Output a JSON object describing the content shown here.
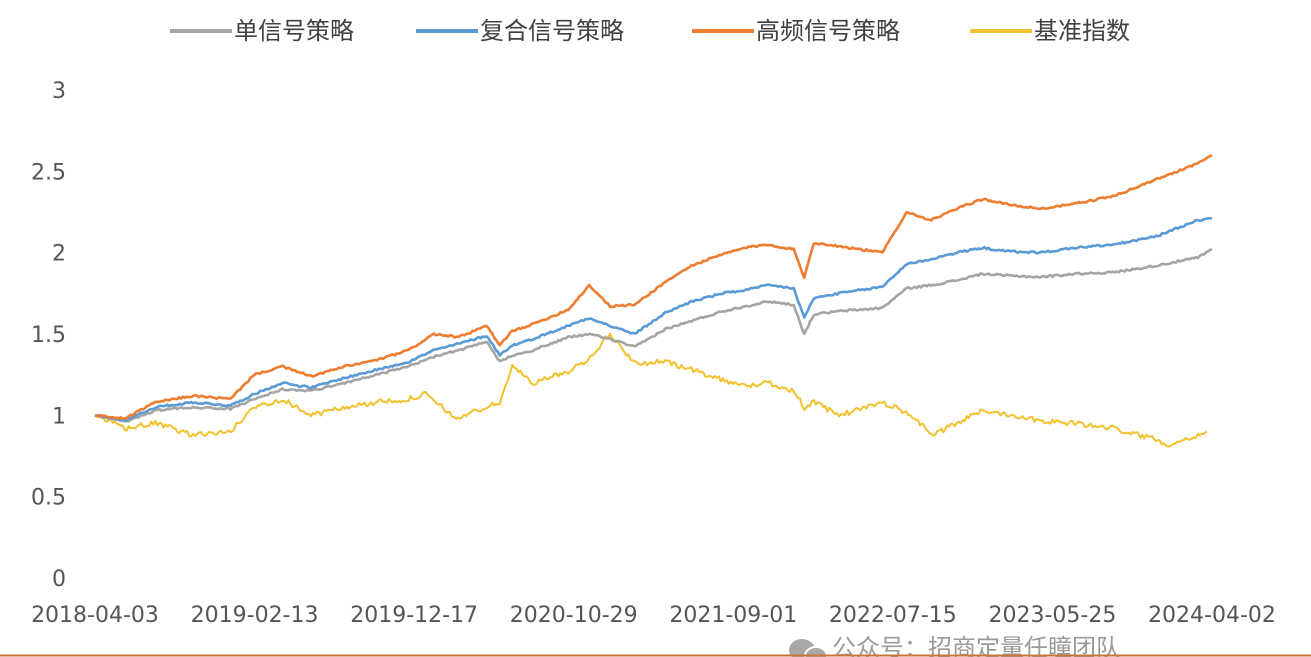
{
  "chart_data": {
    "type": "line",
    "title": "",
    "xlabel": "",
    "ylabel": "",
    "ylim": [
      0,
      3
    ],
    "yticks": [
      0,
      0.5,
      1,
      1.5,
      2,
      2.5,
      3
    ],
    "ytick_labels": [
      "0",
      "0.5",
      "1",
      "1.5",
      "2",
      "2.5",
      "3"
    ],
    "xtick_labels": [
      "2018-04-03",
      "2019-02-13",
      "2019-12-17",
      "2020-10-29",
      "2021-09-01",
      "2022-07-15",
      "2023-05-25",
      "2024-04-02"
    ],
    "x_range": [
      "2018-04-03",
      "2024-04-30"
    ],
    "grid": false,
    "legend_position": "top",
    "series": [
      {
        "name": "单信号策略",
        "color": "#a5a5a5",
        "points": [
          [
            "2018-04-03",
            1.0
          ],
          [
            "2018-06-01",
            0.96
          ],
          [
            "2018-08-01",
            1.03
          ],
          [
            "2018-10-15",
            1.05
          ],
          [
            "2018-12-28",
            1.04
          ],
          [
            "2019-02-13",
            1.1
          ],
          [
            "2019-04-10",
            1.16
          ],
          [
            "2019-06-06",
            1.15
          ],
          [
            "2019-08-12",
            1.2
          ],
          [
            "2019-10-15",
            1.25
          ],
          [
            "2019-12-17",
            1.3
          ],
          [
            "2020-02-05",
            1.36
          ],
          [
            "2020-03-25",
            1.4
          ],
          [
            "2020-05-20",
            1.45
          ],
          [
            "2020-06-15",
            1.33
          ],
          [
            "2020-07-10",
            1.37
          ],
          [
            "2020-08-20",
            1.4
          ],
          [
            "2020-10-29",
            1.48
          ],
          [
            "2020-12-10",
            1.5
          ],
          [
            "2021-01-20",
            1.47
          ],
          [
            "2021-03-10",
            1.42
          ],
          [
            "2021-05-10",
            1.53
          ],
          [
            "2021-07-01",
            1.58
          ],
          [
            "2021-09-01",
            1.64
          ],
          [
            "2021-10-15",
            1.67
          ],
          [
            "2021-12-01",
            1.7
          ],
          [
            "2022-01-20",
            1.68
          ],
          [
            "2022-02-10",
            1.5
          ],
          [
            "2022-03-01",
            1.62
          ],
          [
            "2022-04-20",
            1.64
          ],
          [
            "2022-07-15",
            1.66
          ],
          [
            "2022-09-01",
            1.78
          ],
          [
            "2022-10-20",
            1.8
          ],
          [
            "2022-12-10",
            1.83
          ],
          [
            "2023-01-30",
            1.87
          ],
          [
            "2023-03-15",
            1.86
          ],
          [
            "2023-05-25",
            1.85
          ],
          [
            "2023-08-01",
            1.87
          ],
          [
            "2023-10-20",
            1.88
          ],
          [
            "2024-01-10",
            1.92
          ],
          [
            "2024-04-02",
            1.97
          ],
          [
            "2024-04-30",
            2.02
          ]
        ]
      },
      {
        "name": "复合信号策略",
        "color": "#5b9bd5",
        "points": [
          [
            "2018-04-03",
            1.0
          ],
          [
            "2018-06-01",
            0.97
          ],
          [
            "2018-08-01",
            1.05
          ],
          [
            "2018-10-15",
            1.08
          ],
          [
            "2018-12-28",
            1.06
          ],
          [
            "2019-02-13",
            1.13
          ],
          [
            "2019-04-10",
            1.2
          ],
          [
            "2019-06-06",
            1.17
          ],
          [
            "2019-08-12",
            1.23
          ],
          [
            "2019-10-15",
            1.28
          ],
          [
            "2019-12-17",
            1.33
          ],
          [
            "2020-02-05",
            1.4
          ],
          [
            "2020-03-25",
            1.44
          ],
          [
            "2020-05-20",
            1.49
          ],
          [
            "2020-06-15",
            1.37
          ],
          [
            "2020-07-10",
            1.43
          ],
          [
            "2020-08-20",
            1.47
          ],
          [
            "2020-10-29",
            1.55
          ],
          [
            "2020-12-10",
            1.6
          ],
          [
            "2021-01-20",
            1.55
          ],
          [
            "2021-03-10",
            1.5
          ],
          [
            "2021-05-10",
            1.63
          ],
          [
            "2021-07-01",
            1.7
          ],
          [
            "2021-09-01",
            1.75
          ],
          [
            "2021-10-15",
            1.77
          ],
          [
            "2021-12-01",
            1.8
          ],
          [
            "2022-01-20",
            1.78
          ],
          [
            "2022-02-10",
            1.6
          ],
          [
            "2022-03-01",
            1.72
          ],
          [
            "2022-04-20",
            1.75
          ],
          [
            "2022-07-15",
            1.79
          ],
          [
            "2022-09-01",
            1.93
          ],
          [
            "2022-10-20",
            1.96
          ],
          [
            "2022-12-10",
            2.0
          ],
          [
            "2023-01-30",
            2.03
          ],
          [
            "2023-03-15",
            2.01
          ],
          [
            "2023-05-25",
            2.0
          ],
          [
            "2023-08-01",
            2.03
          ],
          [
            "2023-10-20",
            2.05
          ],
          [
            "2024-01-10",
            2.1
          ],
          [
            "2024-04-02",
            2.2
          ],
          [
            "2024-04-30",
            2.21
          ]
        ]
      },
      {
        "name": "高频信号策略",
        "color": "#ed7d31",
        "points": [
          [
            "2018-04-03",
            1.0
          ],
          [
            "2018-06-01",
            0.98
          ],
          [
            "2018-08-01",
            1.08
          ],
          [
            "2018-10-15",
            1.12
          ],
          [
            "2018-12-28",
            1.1
          ],
          [
            "2019-02-13",
            1.25
          ],
          [
            "2019-04-10",
            1.3
          ],
          [
            "2019-06-06",
            1.24
          ],
          [
            "2019-08-12",
            1.3
          ],
          [
            "2019-10-15",
            1.34
          ],
          [
            "2019-12-17",
            1.4
          ],
          [
            "2020-02-05",
            1.5
          ],
          [
            "2020-03-25",
            1.48
          ],
          [
            "2020-05-20",
            1.55
          ],
          [
            "2020-06-15",
            1.43
          ],
          [
            "2020-07-10",
            1.52
          ],
          [
            "2020-08-20",
            1.56
          ],
          [
            "2020-10-29",
            1.65
          ],
          [
            "2020-12-10",
            1.8
          ],
          [
            "2021-01-20",
            1.67
          ],
          [
            "2021-03-10",
            1.68
          ],
          [
            "2021-05-10",
            1.82
          ],
          [
            "2021-07-01",
            1.92
          ],
          [
            "2021-09-01",
            1.99
          ],
          [
            "2021-10-15",
            2.03
          ],
          [
            "2021-12-01",
            2.05
          ],
          [
            "2022-01-20",
            2.02
          ],
          [
            "2022-02-10",
            1.85
          ],
          [
            "2022-03-01",
            2.06
          ],
          [
            "2022-04-20",
            2.04
          ],
          [
            "2022-07-15",
            2.0
          ],
          [
            "2022-09-01",
            2.25
          ],
          [
            "2022-10-20",
            2.2
          ],
          [
            "2022-12-10",
            2.27
          ],
          [
            "2023-01-30",
            2.33
          ],
          [
            "2023-03-15",
            2.3
          ],
          [
            "2023-05-25",
            2.27
          ],
          [
            "2023-08-01",
            2.3
          ],
          [
            "2023-10-20",
            2.35
          ],
          [
            "2024-01-10",
            2.45
          ],
          [
            "2024-04-02",
            2.55
          ],
          [
            "2024-04-30",
            2.6
          ]
        ]
      },
      {
        "name": "基准指数",
        "color": "#f2c12e",
        "points": [
          [
            "2018-04-03",
            1.0
          ],
          [
            "2018-06-01",
            0.92
          ],
          [
            "2018-08-01",
            0.95
          ],
          [
            "2018-10-15",
            0.88
          ],
          [
            "2018-12-28",
            0.9
          ],
          [
            "2019-02-13",
            1.05
          ],
          [
            "2019-04-10",
            1.1
          ],
          [
            "2019-06-06",
            1.0
          ],
          [
            "2019-08-12",
            1.05
          ],
          [
            "2019-10-15",
            1.08
          ],
          [
            "2019-12-17",
            1.1
          ],
          [
            "2020-01-20",
            1.13
          ],
          [
            "2020-03-20",
            0.98
          ],
          [
            "2020-05-20",
            1.05
          ],
          [
            "2020-06-15",
            1.08
          ],
          [
            "2020-07-10",
            1.3
          ],
          [
            "2020-08-20",
            1.2
          ],
          [
            "2020-10-29",
            1.27
          ],
          [
            "2020-12-10",
            1.35
          ],
          [
            "2021-01-20",
            1.5
          ],
          [
            "2021-03-10",
            1.32
          ],
          [
            "2021-05-10",
            1.33
          ],
          [
            "2021-07-01",
            1.28
          ],
          [
            "2021-09-01",
            1.22
          ],
          [
            "2021-10-15",
            1.18
          ],
          [
            "2021-12-01",
            1.2
          ],
          [
            "2022-01-20",
            1.15
          ],
          [
            "2022-02-10",
            1.05
          ],
          [
            "2022-03-01",
            1.08
          ],
          [
            "2022-04-20",
            1.0
          ],
          [
            "2022-07-15",
            1.08
          ],
          [
            "2022-09-01",
            1.02
          ],
          [
            "2022-10-25",
            0.88
          ],
          [
            "2022-12-10",
            0.95
          ],
          [
            "2023-01-30",
            1.03
          ],
          [
            "2023-03-15",
            1.01
          ],
          [
            "2023-05-25",
            0.97
          ],
          [
            "2023-08-01",
            0.95
          ],
          [
            "2023-10-20",
            0.92
          ],
          [
            "2024-01-10",
            0.85
          ],
          [
            "2024-02-05",
            0.82
          ],
          [
            "2024-04-02",
            0.88
          ],
          [
            "2024-04-20",
            0.9
          ]
        ]
      }
    ]
  },
  "watermark": {
    "icon": "wechat-icon",
    "text": "公众号：招商定量任瞳团队"
  }
}
